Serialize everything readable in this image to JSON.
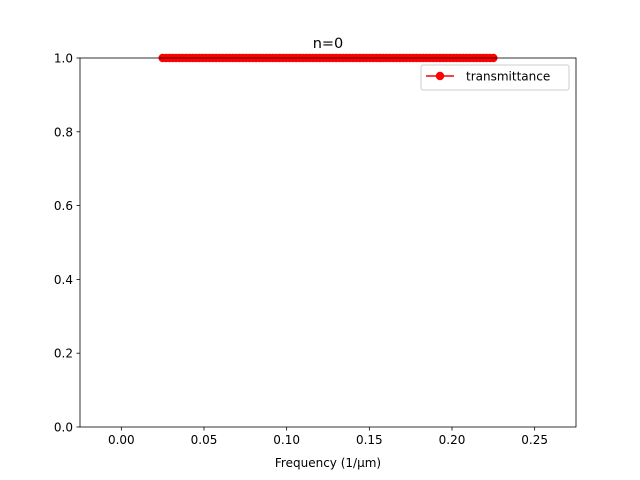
{
  "chart_data": {
    "type": "line",
    "title": "n=0",
    "xlabel": "Frequency (1/μm)",
    "ylabel": "",
    "xlim": [
      -0.025,
      0.275
    ],
    "ylim": [
      0.0,
      1.0
    ],
    "xticks": [
      0.0,
      0.05,
      0.1,
      0.15,
      0.2,
      0.25
    ],
    "xtick_labels": [
      "0.00",
      "0.05",
      "0.10",
      "0.15",
      "0.20",
      "0.25"
    ],
    "yticks": [
      0.0,
      0.2,
      0.4,
      0.6,
      0.8,
      1.0
    ],
    "ytick_labels": [
      "0.0",
      "0.2",
      "0.4",
      "0.6",
      "0.8",
      "1.0"
    ],
    "grid": false,
    "legend_position": "top-right",
    "series": [
      {
        "name": "transmittance",
        "color": "#ff0000",
        "marker": "circle",
        "x_start": 0.025,
        "x_end": 0.225,
        "num_points": 100,
        "y_constant": 1.0
      }
    ]
  }
}
